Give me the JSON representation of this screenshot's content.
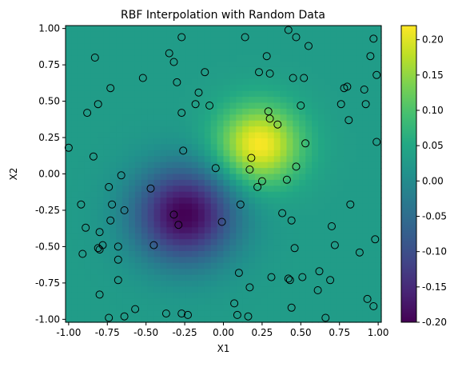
{
  "chart_data": {
    "type": "heatmap",
    "title": "RBF Interpolation with Random Data",
    "xlabel": "X1",
    "ylabel": "X2",
    "xlim": [
      -1.02,
      1.02
    ],
    "ylim": [
      -1.02,
      1.02
    ],
    "x_ticks": [
      "-1.00",
      "-0.75",
      "-0.50",
      "-0.25",
      "0.00",
      "0.25",
      "0.50",
      "0.75",
      "1.00"
    ],
    "y_ticks": [
      "-1.00",
      "-0.75",
      "-0.50",
      "-0.25",
      "0.00",
      "0.25",
      "0.50",
      "0.75",
      "1.00"
    ],
    "grid": false,
    "colormap": "viridis",
    "colorbar": {
      "range": [
        -0.2,
        0.22
      ],
      "ticks": [
        "-0.20",
        "-0.15",
        "-0.10",
        "-0.05",
        "0.00",
        "0.05",
        "0.10",
        "0.15",
        "0.20"
      ]
    },
    "field_features": [
      {
        "kind": "peak",
        "x": 0.23,
        "y": 0.2,
        "value": 0.22
      },
      {
        "kind": "trough",
        "x": -0.25,
        "y": -0.28,
        "value": -0.2
      }
    ],
    "background_value": 0.03,
    "points": [
      [
        -0.83,
        0.8
      ],
      [
        -0.35,
        0.83
      ],
      [
        -0.27,
        0.94
      ],
      [
        0.14,
        0.94
      ],
      [
        0.42,
        0.99
      ],
      [
        0.47,
        0.94
      ],
      [
        0.55,
        0.88
      ],
      [
        0.97,
        0.93
      ],
      [
        0.28,
        0.81
      ],
      [
        -0.32,
        0.77
      ],
      [
        0.95,
        0.81
      ],
      [
        -0.73,
        0.59
      ],
      [
        -0.52,
        0.66
      ],
      [
        -0.3,
        0.63
      ],
      [
        -0.12,
        0.7
      ],
      [
        0.23,
        0.7
      ],
      [
        0.3,
        0.69
      ],
      [
        0.45,
        0.66
      ],
      [
        0.52,
        0.66
      ],
      [
        0.99,
        0.68
      ],
      [
        -0.16,
        0.56
      ],
      [
        0.78,
        0.59
      ],
      [
        0.8,
        0.6
      ],
      [
        0.91,
        0.58
      ],
      [
        -0.81,
        0.48
      ],
      [
        -0.18,
        0.48
      ],
      [
        -0.09,
        0.47
      ],
      [
        0.5,
        0.47
      ],
      [
        0.76,
        0.48
      ],
      [
        0.92,
        0.48
      ],
      [
        -0.88,
        0.42
      ],
      [
        -0.27,
        0.42
      ],
      [
        0.29,
        0.43
      ],
      [
        0.3,
        0.38
      ],
      [
        0.35,
        0.34
      ],
      [
        0.81,
        0.37
      ],
      [
        0.53,
        0.21
      ],
      [
        0.99,
        0.22
      ],
      [
        -1.0,
        0.18
      ],
      [
        -0.26,
        0.16
      ],
      [
        -0.84,
        0.12
      ],
      [
        0.18,
        0.11
      ],
      [
        -0.05,
        0.04
      ],
      [
        0.17,
        0.03
      ],
      [
        0.47,
        0.05
      ],
      [
        -0.66,
        -0.01
      ],
      [
        0.25,
        -0.05
      ],
      [
        0.41,
        -0.04
      ],
      [
        -0.74,
        -0.09
      ],
      [
        -0.47,
        -0.1
      ],
      [
        0.22,
        -0.09
      ],
      [
        -0.92,
        -0.21
      ],
      [
        -0.72,
        -0.21
      ],
      [
        0.11,
        -0.21
      ],
      [
        -0.64,
        -0.25
      ],
      [
        0.38,
        -0.27
      ],
      [
        -0.32,
        -0.28
      ],
      [
        0.82,
        -0.21
      ],
      [
        0.44,
        -0.32
      ],
      [
        -0.73,
        -0.32
      ],
      [
        -0.01,
        -0.33
      ],
      [
        -0.29,
        -0.35
      ],
      [
        -0.89,
        -0.37
      ],
      [
        -0.8,
        -0.4
      ],
      [
        0.7,
        -0.36
      ],
      [
        -0.78,
        -0.49
      ],
      [
        -0.45,
        -0.49
      ],
      [
        -0.81,
        -0.51
      ],
      [
        -0.8,
        -0.52
      ],
      [
        -0.68,
        -0.5
      ],
      [
        0.46,
        -0.51
      ],
      [
        0.72,
        -0.49
      ],
      [
        0.98,
        -0.45
      ],
      [
        -0.91,
        -0.55
      ],
      [
        0.88,
        -0.54
      ],
      [
        -0.68,
        -0.59
      ],
      [
        0.1,
        -0.68
      ],
      [
        0.31,
        -0.71
      ],
      [
        0.51,
        -0.71
      ],
      [
        0.62,
        -0.67
      ],
      [
        0.42,
        -0.72
      ],
      [
        0.43,
        -0.73
      ],
      [
        -0.68,
        -0.73
      ],
      [
        0.69,
        -0.73
      ],
      [
        0.17,
        -0.78
      ],
      [
        0.61,
        -0.8
      ],
      [
        -0.8,
        -0.83
      ],
      [
        0.93,
        -0.86
      ],
      [
        0.07,
        -0.89
      ],
      [
        0.44,
        -0.92
      ],
      [
        0.97,
        -0.91
      ],
      [
        -0.57,
        -0.93
      ],
      [
        -0.37,
        -0.96
      ],
      [
        -0.27,
        -0.96
      ],
      [
        -0.23,
        -0.97
      ],
      [
        0.09,
        -0.97
      ],
      [
        0.16,
        -0.98
      ],
      [
        -0.64,
        -0.98
      ],
      [
        -0.74,
        -0.99
      ],
      [
        0.66,
        -0.99
      ]
    ]
  }
}
